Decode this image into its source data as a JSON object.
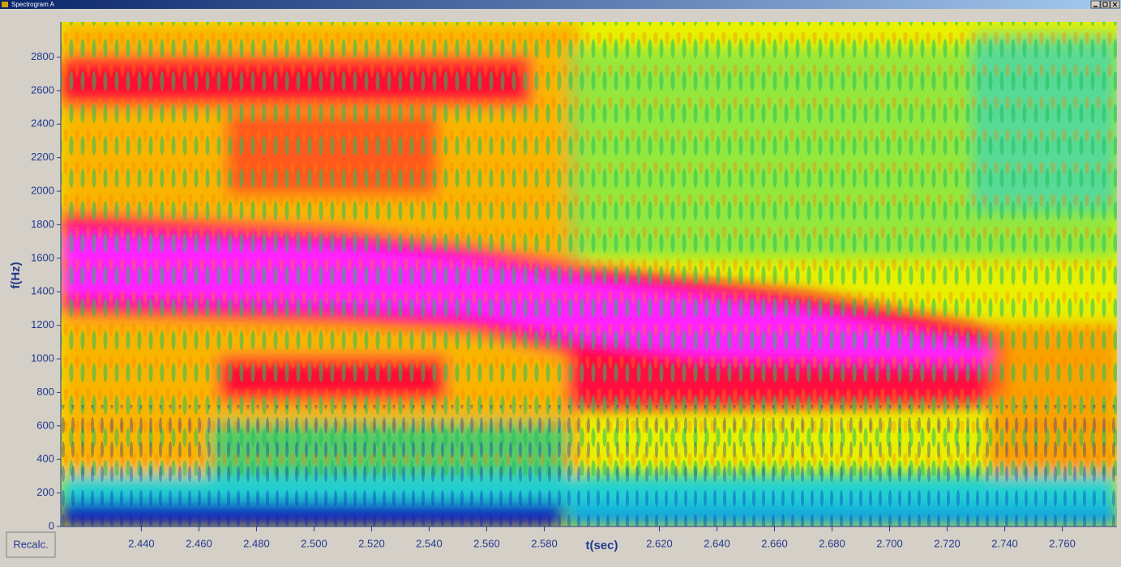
{
  "window": {
    "title": "Spectrogram A"
  },
  "button": {
    "label": "Recalc."
  },
  "chart_data": {
    "type": "spectrogram",
    "xlabel": "t(sec)",
    "ylabel": "f(Hz)",
    "xlim": [
      2.412,
      2.779
    ],
    "ylim": [
      0,
      3010
    ],
    "xticks": [
      {
        "value": 2.44,
        "label": "2.440"
      },
      {
        "value": 2.46,
        "label": "2.460"
      },
      {
        "value": 2.48,
        "label": "2.480"
      },
      {
        "value": 2.5,
        "label": "2.500"
      },
      {
        "value": 2.52,
        "label": "2.520"
      },
      {
        "value": 2.54,
        "label": "2.540"
      },
      {
        "value": 2.56,
        "label": "2.560"
      },
      {
        "value": 2.58,
        "label": "2.580"
      },
      {
        "value": 2.62,
        "label": "2.620"
      },
      {
        "value": 2.64,
        "label": "2.640"
      },
      {
        "value": 2.66,
        "label": "2.660"
      },
      {
        "value": 2.68,
        "label": "2.680"
      },
      {
        "value": 2.7,
        "label": "2.700"
      },
      {
        "value": 2.72,
        "label": "2.720"
      },
      {
        "value": 2.74,
        "label": "2.740"
      },
      {
        "value": 2.76,
        "label": "2.760"
      }
    ],
    "yticks": [
      0,
      200,
      400,
      600,
      800,
      1000,
      1200,
      1400,
      1600,
      1800,
      2000,
      2200,
      2400,
      2600,
      2800
    ],
    "xlabel_at": 2.6
  }
}
